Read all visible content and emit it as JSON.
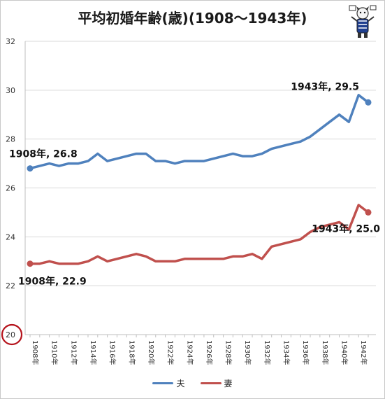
{
  "chart_data": {
    "type": "line",
    "title": "平均初婚年齢(歳)(1908～1943年)",
    "xlabel": "",
    "ylabel": "",
    "ylim": [
      20,
      32
    ],
    "yticks": [
      20,
      22,
      24,
      26,
      28,
      30,
      32
    ],
    "x": [
      1908,
      1909,
      1910,
      1911,
      1912,
      1913,
      1914,
      1915,
      1916,
      1917,
      1918,
      1919,
      1920,
      1921,
      1922,
      1923,
      1924,
      1925,
      1926,
      1927,
      1928,
      1929,
      1930,
      1931,
      1932,
      1933,
      1934,
      1935,
      1936,
      1937,
      1938,
      1939,
      1940,
      1941,
      1942,
      1943
    ],
    "x_tick_labels": [
      "1908年",
      "1910年",
      "1912年",
      "1914年",
      "1916年",
      "1918年",
      "1920年",
      "1922年",
      "1924年",
      "1926年",
      "1928年",
      "1930年",
      "1932年",
      "1934年",
      "1936年",
      "1938年",
      "1940年",
      "1942年"
    ],
    "grid": "horizontal",
    "legend_position": "bottom",
    "series": [
      {
        "name": "夫",
        "color": "#4f81bd",
        "values": [
          26.8,
          26.9,
          27.0,
          26.9,
          27.0,
          27.0,
          27.1,
          27.4,
          27.1,
          27.2,
          27.3,
          27.4,
          27.4,
          27.1,
          27.1,
          27.0,
          27.1,
          27.1,
          27.1,
          27.2,
          27.3,
          27.4,
          27.3,
          27.3,
          27.4,
          27.6,
          27.7,
          27.8,
          27.9,
          28.1,
          28.4,
          28.7,
          29.0,
          28.7,
          29.8,
          29.5
        ]
      },
      {
        "name": "妻",
        "color": "#c0504d",
        "values": [
          22.9,
          22.9,
          23.0,
          22.9,
          22.9,
          22.9,
          23.0,
          23.2,
          23.0,
          23.1,
          23.2,
          23.3,
          23.2,
          23.0,
          23.0,
          23.0,
          23.1,
          23.1,
          23.1,
          23.1,
          23.1,
          23.2,
          23.2,
          23.3,
          23.1,
          23.6,
          23.7,
          23.8,
          23.9,
          24.2,
          24.4,
          24.5,
          24.6,
          24.3,
          25.3,
          25.0
        ]
      }
    ],
    "annotations": [
      {
        "text": "1908年, 26.8",
        "series": 0,
        "point": 0,
        "anchor": "start"
      },
      {
        "text": "1943年, 29.5",
        "series": 0,
        "point": 35,
        "anchor": "end"
      },
      {
        "text": "1908年, 22.9",
        "series": 1,
        "point": 0,
        "anchor": "start"
      },
      {
        "text": "1943年, 25.0",
        "series": 1,
        "point": 35,
        "anchor": "end"
      }
    ],
    "highlight_tick": {
      "value": 20,
      "color": "#b5121b"
    }
  }
}
